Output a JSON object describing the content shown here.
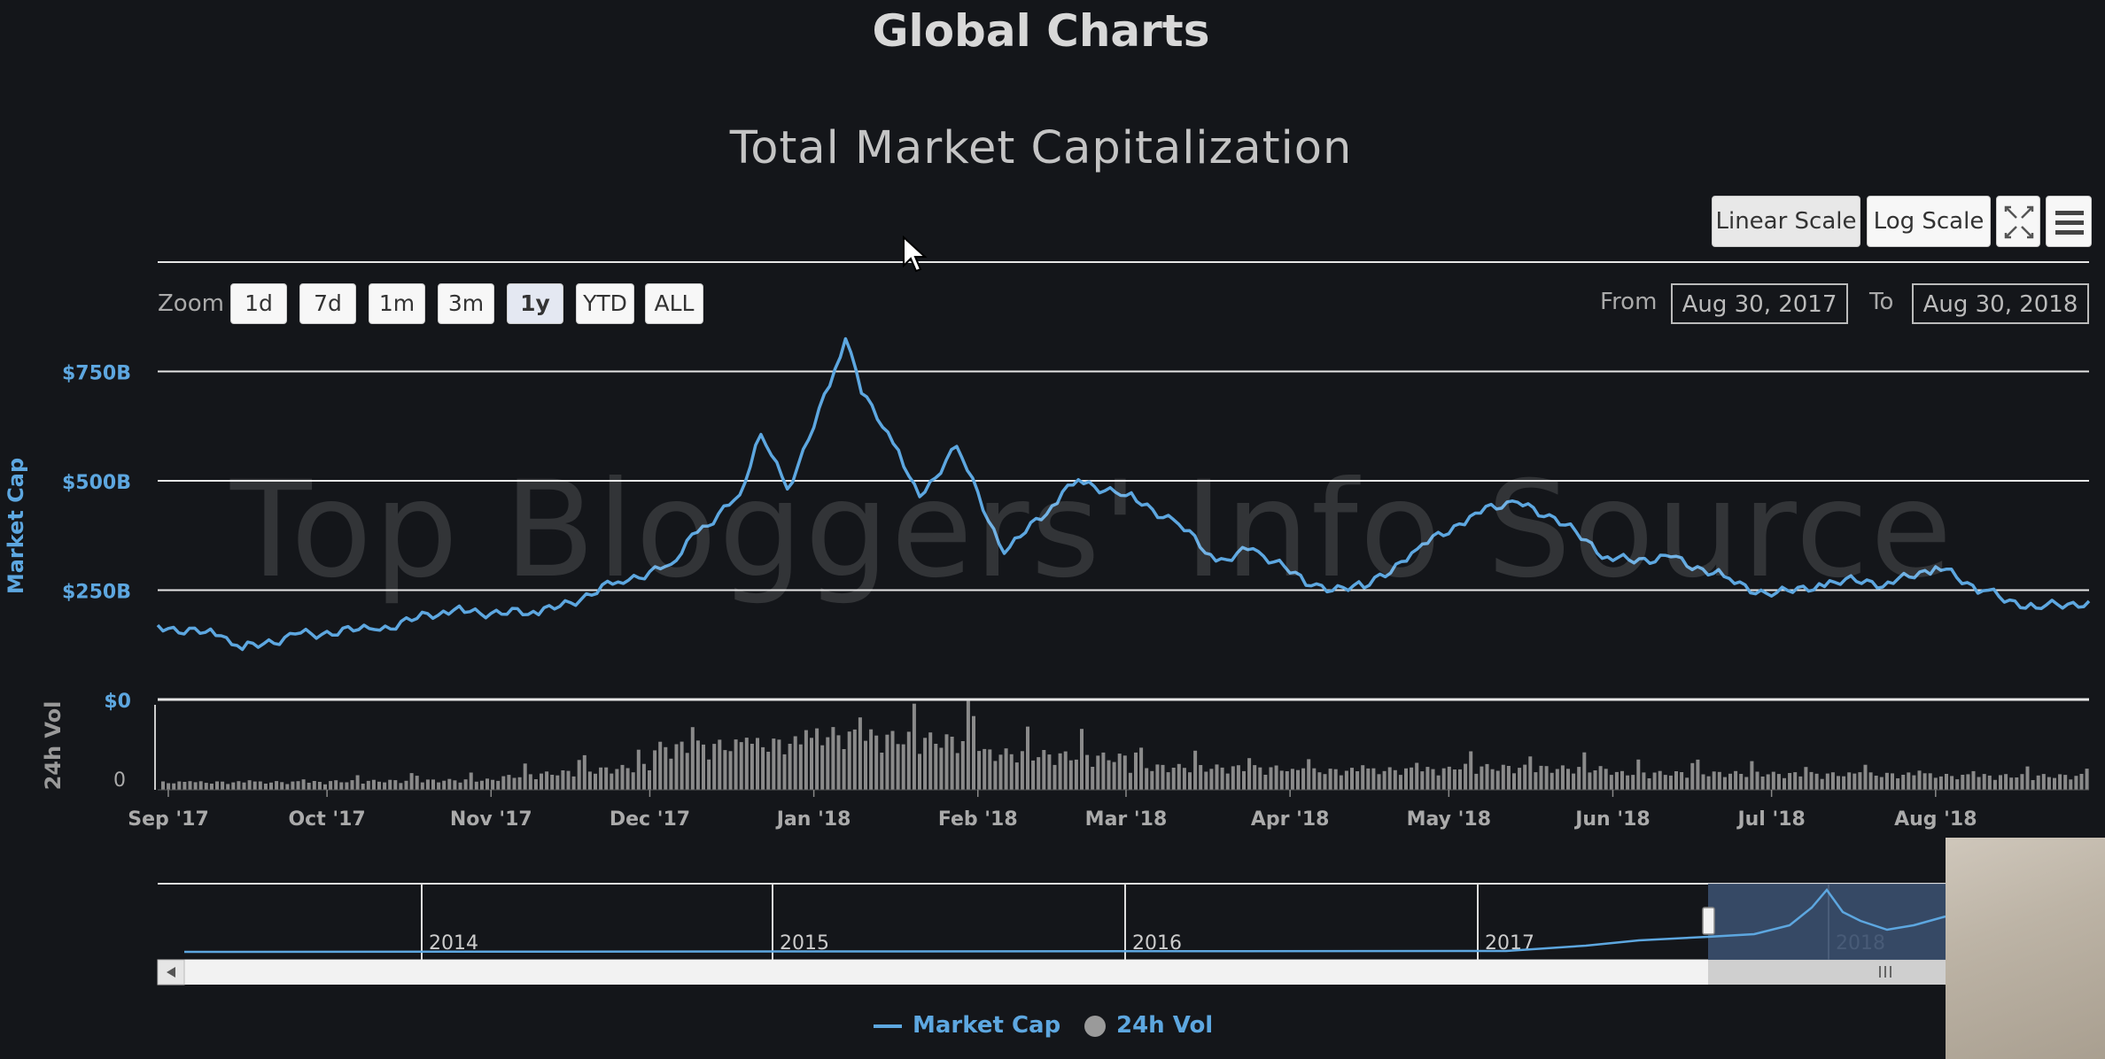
{
  "page_title": "Global Charts",
  "toolbar": {
    "zoom_label": "Zoom",
    "zoom_buttons": [
      "1d",
      "7d",
      "1m",
      "3m",
      "1y",
      "YTD",
      "ALL"
    ],
    "zoom_selected": "1y",
    "from_label": "From",
    "to_label": "To",
    "from_value": "Aug 30, 2017",
    "to_value": "Aug 30, 2018",
    "linear_scale_label": "Linear Scale",
    "log_scale_label": "Log Scale",
    "scale_selected": "Linear Scale",
    "fullscreen_icon": "fullscreen-icon",
    "menu_icon": "hamburger-menu-icon"
  },
  "watermark": "Top Bloggers' Info Source",
  "colors": {
    "background": "#14161a",
    "market_cap_line": "#5da7e0",
    "volume_bars": "#8a8a8a",
    "navigator_fill": "#3a4f6e"
  },
  "chart_data": {
    "type": "line",
    "title": "Total Market Capitalization",
    "ylabel": "Market Cap",
    "ylabel_volume": "24h Vol",
    "y_ticks": [
      "$0",
      "$250B",
      "$500B",
      "$750B"
    ],
    "volume_ticks": [
      "0"
    ],
    "ylim": [
      0,
      1000
    ],
    "y_unit": "billion USD",
    "x_ticks": [
      "Sep '17",
      "Oct '17",
      "Nov '17",
      "Dec '17",
      "Jan '18",
      "Feb '18",
      "Mar '18",
      "Apr '18",
      "May '18",
      "Jun '18",
      "Jul '18",
      "Aug '18"
    ],
    "xlim": [
      "2017-08-30",
      "2018-08-30"
    ],
    "series": [
      {
        "name": "Market Cap",
        "x": [
          "2017-08-30",
          "2017-09-10",
          "2017-09-15",
          "2017-09-25",
          "2017-10-10",
          "2017-10-25",
          "2017-11-10",
          "2017-11-25",
          "2017-12-05",
          "2017-12-10",
          "2017-12-18",
          "2017-12-22",
          "2017-12-27",
          "2018-01-04",
          "2018-01-07",
          "2018-01-10",
          "2018-01-16",
          "2018-01-21",
          "2018-01-28",
          "2018-02-06",
          "2018-02-15",
          "2018-02-20",
          "2018-03-01",
          "2018-03-10",
          "2018-03-18",
          "2018-03-25",
          "2018-04-05",
          "2018-04-15",
          "2018-04-25",
          "2018-05-05",
          "2018-05-13",
          "2018-05-20",
          "2018-06-01",
          "2018-06-12",
          "2018-06-22",
          "2018-07-01",
          "2018-07-10",
          "2018-07-17",
          "2018-07-24",
          "2018-08-01",
          "2018-08-10",
          "2018-08-20",
          "2018-08-30"
        ],
        "values": [
          170,
          145,
          118,
          145,
          160,
          210,
          190,
          270,
          315,
          380,
          470,
          600,
          480,
          720,
          820,
          700,
          590,
          460,
          580,
          340,
          440,
          505,
          460,
          410,
          320,
          340,
          260,
          260,
          340,
          420,
          460,
          420,
          320,
          320,
          280,
          240,
          260,
          270,
          270,
          300,
          250,
          215,
          225
        ]
      },
      {
        "name": "24h Vol",
        "type": "bar",
        "x": [
          "2017-09",
          "2017-10",
          "2017-11",
          "2017-12",
          "2018-01",
          "2018-02",
          "2018-03",
          "2018-04",
          "2018-05",
          "2018-06",
          "2018-07",
          "2018-08"
        ],
        "values": [
          8,
          9,
          13,
          45,
          60,
          40,
          25,
          20,
          25,
          18,
          17,
          15
        ]
      }
    ],
    "navigator": {
      "x_ticks": [
        "2014",
        "2015",
        "2016",
        "2017",
        "2018"
      ]
    },
    "legend": {
      "position": "bottom-center",
      "items": [
        "Market Cap",
        "24h Vol"
      ]
    },
    "grid": true
  }
}
